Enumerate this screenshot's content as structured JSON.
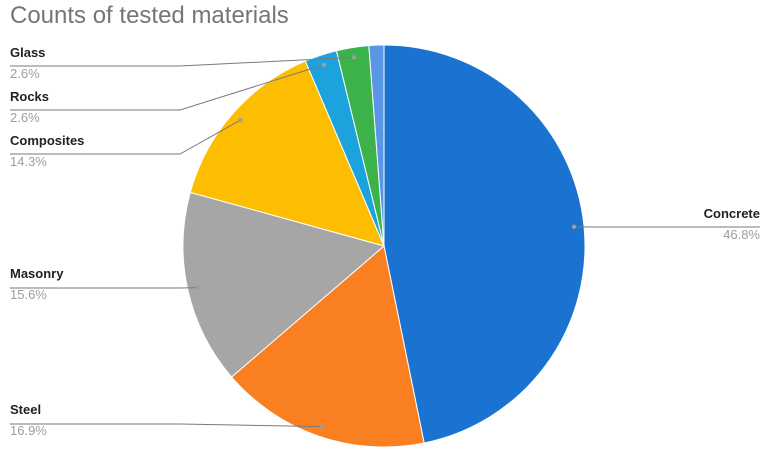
{
  "chart_data": {
    "type": "pie",
    "title": "Counts of tested materials",
    "slices": [
      {
        "label": "Concrete",
        "percent_label": "46.8%",
        "value": 46.8,
        "color": "#1a73d0"
      },
      {
        "label": "Steel",
        "percent_label": "16.9%",
        "value": 16.9,
        "color": "#fa7f21"
      },
      {
        "label": "Masonry",
        "percent_label": "15.6%",
        "value": 15.6,
        "color": "#a6a6a6"
      },
      {
        "label": "Composites",
        "percent_label": "14.3%",
        "value": 14.3,
        "color": "#fdbd00"
      },
      {
        "label": "Rocks",
        "percent_label": "2.6%",
        "value": 2.6,
        "color": "#1ca3de"
      },
      {
        "label": "Glass",
        "percent_label": "2.6%",
        "value": 2.6,
        "color": "#3bb34a"
      },
      {
        "label": "",
        "percent_label": "",
        "value": 1.2,
        "color": "#5b95e6"
      }
    ],
    "start_angle": "12 o'clock",
    "direction": "clockwise",
    "legend": "none",
    "label_style": "callout lines with name and percent"
  }
}
